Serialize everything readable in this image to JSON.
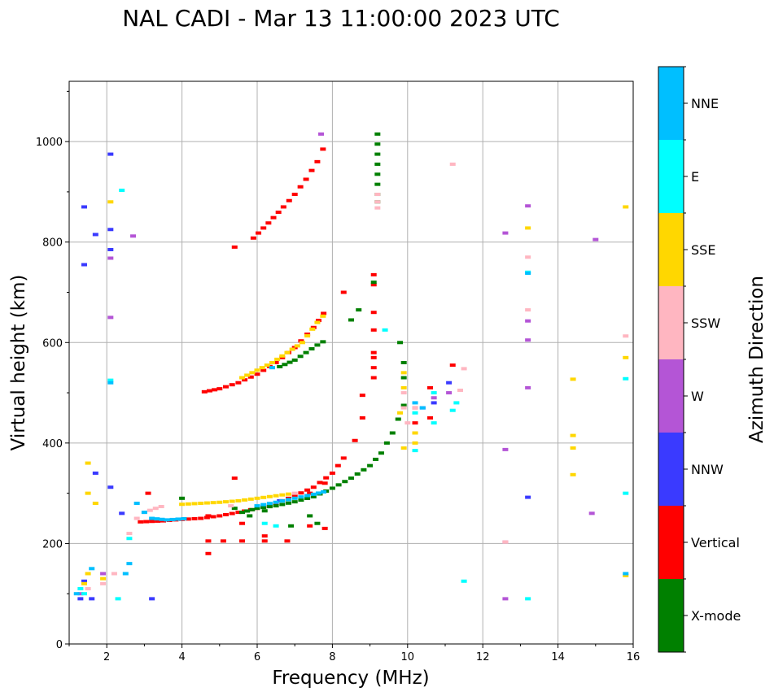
{
  "chart_data": {
    "type": "scatter",
    "title": "NAL CADI - Mar 13 11:00:00 2023 UTC",
    "xlabel": "Frequency (MHz)",
    "ylabel": "Virtual height (km)",
    "xlim": [
      1,
      16
    ],
    "ylim": [
      0,
      1120
    ],
    "xticks": [
      2,
      4,
      6,
      8,
      10,
      12,
      14,
      16
    ],
    "yticks": [
      0,
      200,
      400,
      600,
      800,
      1000
    ],
    "grid": true,
    "colorbar": {
      "label": "Azimuth Direction",
      "categories": [
        {
          "name": "X-mode",
          "color": "#008000"
        },
        {
          "name": "Vertical",
          "color": "#ff0000"
        },
        {
          "name": "NNW",
          "color": "#3a3aff"
        },
        {
          "name": "W",
          "color": "#b455d6"
        },
        {
          "name": "SSW",
          "color": "#ffb6c1"
        },
        {
          "name": "SSE",
          "color": "#ffd700"
        },
        {
          "name": "E",
          "color": "#00ffff"
        },
        {
          "name": "NNE",
          "color": "#00bfff"
        }
      ]
    },
    "series": [
      {
        "name": "Vertical",
        "color": "#ff0000",
        "segments": [
          [
            [
              2.9,
              243
            ],
            [
              3.5,
              245
            ],
            [
              4.0,
              248
            ],
            [
              4.5,
              250
            ],
            [
              5.0,
              255
            ],
            [
              5.5,
              262
            ],
            [
              6.0,
              270
            ],
            [
              6.5,
              280
            ],
            [
              7.0,
              295
            ],
            [
              7.5,
              312
            ],
            [
              8.0,
              340
            ],
            [
              8.3,
              370
            ],
            [
              8.5,
              390
            ]
          ],
          [
            [
              4.6,
              502
            ],
            [
              5.0,
              508
            ],
            [
              5.5,
              520
            ],
            [
              6.0,
              537
            ],
            [
              6.5,
              560
            ],
            [
              7.0,
              590
            ],
            [
              7.5,
              630
            ],
            [
              7.9,
              672
            ]
          ],
          [
            [
              5.9,
              808
            ],
            [
              6.3,
              838
            ],
            [
              6.7,
              870
            ],
            [
              7.0,
              895
            ],
            [
              7.3,
              925
            ],
            [
              7.6,
              960
            ],
            [
              7.9,
              1010
            ]
          ]
        ],
        "points": [
          [
            9.1,
            735
          ],
          [
            9.1,
            715
          ],
          [
            9.1,
            660
          ],
          [
            9.1,
            625
          ],
          [
            9.1,
            580
          ],
          [
            9.1,
            570
          ],
          [
            9.1,
            550
          ],
          [
            9.1,
            530
          ],
          [
            8.8,
            495
          ],
          [
            8.8,
            450
          ],
          [
            8.6,
            405
          ],
          [
            8.3,
            700
          ],
          [
            5.4,
            790
          ],
          [
            4.7,
            180
          ],
          [
            4.7,
            205
          ],
          [
            5.1,
            205
          ],
          [
            5.6,
            205
          ],
          [
            5.6,
            240
          ],
          [
            6.2,
            205
          ],
          [
            6.2,
            215
          ],
          [
            6.8,
            205
          ],
          [
            7.4,
            235
          ],
          [
            7.8,
            230
          ],
          [
            4.7,
            255
          ],
          [
            5.4,
            330
          ],
          [
            7.4,
            300
          ],
          [
            7.8,
            320
          ],
          [
            3.1,
            300
          ],
          [
            11.2,
            555
          ],
          [
            10.6,
            510
          ],
          [
            10.6,
            450
          ],
          [
            10.2,
            470
          ],
          [
            10.2,
            440
          ]
        ]
      },
      {
        "name": "X-mode",
        "color": "#008000",
        "segments": [
          [
            [
              5.6,
              262
            ],
            [
              6.0,
              270
            ],
            [
              6.5,
              275
            ],
            [
              7.0,
              283
            ],
            [
              7.5,
              293
            ],
            [
              8.0,
              310
            ],
            [
              8.5,
              330
            ],
            [
              9.0,
              355
            ],
            [
              9.3,
              380
            ],
            [
              9.6,
              420
            ],
            [
              9.9,
              475
            ],
            [
              10.1,
              500
            ]
          ],
          [
            [
              6.6,
              552
            ],
            [
              7.0,
              565
            ],
            [
              7.3,
              580
            ],
            [
              7.6,
              595
            ],
            [
              7.9,
              608
            ]
          ]
        ],
        "points": [
          [
            9.2,
            1015
          ],
          [
            9.2,
            995
          ],
          [
            9.2,
            975
          ],
          [
            9.2,
            955
          ],
          [
            9.2,
            935
          ],
          [
            9.2,
            915
          ],
          [
            9.2,
            895
          ],
          [
            9.2,
            880
          ],
          [
            9.1,
            720
          ],
          [
            8.7,
            665
          ],
          [
            8.5,
            645
          ],
          [
            9.8,
            600
          ],
          [
            9.9,
            560
          ],
          [
            9.9,
            530
          ],
          [
            7.4,
            255
          ],
          [
            7.6,
            240
          ],
          [
            6.9,
            235
          ],
          [
            6.2,
            265
          ],
          [
            5.4,
            270
          ],
          [
            4.0,
            290
          ],
          [
            5.8,
            255
          ]
        ]
      },
      {
        "name": "NNW",
        "color": "#3a3aff",
        "segments": [],
        "points": [
          [
            1.4,
            870
          ],
          [
            1.4,
            755
          ],
          [
            1.7,
            815
          ],
          [
            2.1,
            975
          ],
          [
            2.1,
            825
          ],
          [
            2.1,
            785
          ],
          [
            2.1,
            312
          ],
          [
            1.7,
            340
          ],
          [
            1.3,
            90
          ],
          [
            1.6,
            90
          ],
          [
            3.2,
            90
          ],
          [
            1.4,
            125
          ],
          [
            2.4,
            260
          ],
          [
            10.4,
            470
          ],
          [
            10.7,
            480
          ],
          [
            11.1,
            520
          ],
          [
            13.2,
            292
          ],
          [
            6.6,
            285
          ]
        ]
      },
      {
        "name": "W",
        "color": "#b455d6",
        "segments": [],
        "points": [
          [
            7.7,
            1015
          ],
          [
            12.6,
            818
          ],
          [
            13.2,
            872
          ],
          [
            15.0,
            805
          ],
          [
            13.2,
            643
          ],
          [
            13.2,
            605
          ],
          [
            13.2,
            510
          ],
          [
            12.6,
            387
          ],
          [
            14.9,
            260
          ],
          [
            12.6,
            203
          ],
          [
            12.6,
            90
          ],
          [
            10.7,
            490
          ],
          [
            11.1,
            500
          ],
          [
            2.1,
            650
          ],
          [
            2.1,
            768
          ],
          [
            2.7,
            812
          ],
          [
            1.3,
            100
          ],
          [
            1.9,
            140
          ]
        ]
      },
      {
        "name": "SSW",
        "color": "#ffb6c1",
        "segments": [
          [
            [
              2.6,
              220
            ],
            [
              2.8,
              250
            ],
            [
              3.0,
              262
            ],
            [
              3.3,
              270
            ],
            [
              3.6,
              277
            ]
          ]
        ],
        "points": [
          [
            9.2,
            895
          ],
          [
            9.2,
            880
          ],
          [
            9.2,
            868
          ],
          [
            11.2,
            955
          ],
          [
            13.2,
            770
          ],
          [
            13.2,
            665
          ],
          [
            15.8,
            613
          ],
          [
            11.5,
            548
          ],
          [
            11.4,
            505
          ],
          [
            9.9,
            500
          ],
          [
            9.9,
            470
          ],
          [
            10.0,
            440
          ],
          [
            10.2,
            470
          ],
          [
            10.2,
            420
          ],
          [
            1.5,
            110
          ],
          [
            2.2,
            140
          ],
          [
            1.9,
            120
          ],
          [
            12.6,
            203
          ],
          [
            5.3,
            275
          ],
          [
            7.0,
            300
          ]
        ]
      },
      {
        "name": "SSE",
        "color": "#ffd700",
        "segments": [
          [
            [
              4.0,
              278
            ],
            [
              4.5,
              280
            ],
            [
              5.0,
              282
            ],
            [
              5.5,
              285
            ],
            [
              6.0,
              290
            ],
            [
              6.5,
              295
            ],
            [
              7.0,
              300
            ]
          ],
          [
            [
              5.6,
              530
            ],
            [
              6.0,
              545
            ],
            [
              6.4,
              560
            ],
            [
              6.8,
              580
            ],
            [
              7.2,
              600
            ],
            [
              7.6,
              640
            ],
            [
              7.9,
              665
            ]
          ]
        ],
        "points": [
          [
            13.2,
            828
          ],
          [
            15.8,
            870
          ],
          [
            15.8,
            570
          ],
          [
            14.4,
            527
          ],
          [
            14.4,
            415
          ],
          [
            14.4,
            390
          ],
          [
            14.4,
            337
          ],
          [
            15.8,
            136
          ],
          [
            9.9,
            540
          ],
          [
            9.9,
            510
          ],
          [
            10.2,
            420
          ],
          [
            10.2,
            400
          ],
          [
            9.9,
            390
          ],
          [
            1.5,
            360
          ],
          [
            1.5,
            300
          ],
          [
            1.7,
            280
          ],
          [
            1.4,
            120
          ],
          [
            1.5,
            140
          ],
          [
            1.9,
            130
          ],
          [
            2.1,
            880
          ],
          [
            9.8,
            460
          ]
        ]
      },
      {
        "name": "E",
        "color": "#00ffff",
        "segments": [],
        "points": [
          [
            13.2,
            740
          ],
          [
            15.8,
            528
          ],
          [
            15.8,
            300
          ],
          [
            11.5,
            125
          ],
          [
            13.2,
            90
          ],
          [
            10.2,
            385
          ],
          [
            10.2,
            460
          ],
          [
            10.7,
            440
          ],
          [
            10.7,
            500
          ],
          [
            11.2,
            465
          ],
          [
            11.3,
            480
          ],
          [
            9.4,
            625
          ],
          [
            2.1,
            525
          ],
          [
            6.2,
            240
          ],
          [
            6.5,
            235
          ],
          [
            2.4,
            903
          ],
          [
            1.4,
            100
          ],
          [
            2.3,
            90
          ],
          [
            2.6,
            210
          ],
          [
            1.3,
            110
          ]
        ]
      },
      {
        "name": "NNE",
        "color": "#00bfff",
        "segments": [
          [
            [
              2.8,
              280
            ],
            [
              3.0,
              262
            ],
            [
              3.2,
              250
            ],
            [
              3.6,
              247
            ],
            [
              4.2,
              250
            ]
          ],
          [
            [
              6.0,
              275
            ],
            [
              6.5,
              282
            ],
            [
              7.0,
              290
            ],
            [
              7.5,
              298
            ],
            [
              7.9,
              305
            ]
          ]
        ],
        "points": [
          [
            13.2,
            738
          ],
          [
            15.8,
            140
          ],
          [
            2.1,
            520
          ],
          [
            1.2,
            100
          ],
          [
            1.6,
            150
          ],
          [
            6.4,
            550
          ],
          [
            10.2,
            480
          ],
          [
            10.4,
            470
          ],
          [
            2.6,
            160
          ],
          [
            2.5,
            140
          ]
        ]
      }
    ]
  }
}
